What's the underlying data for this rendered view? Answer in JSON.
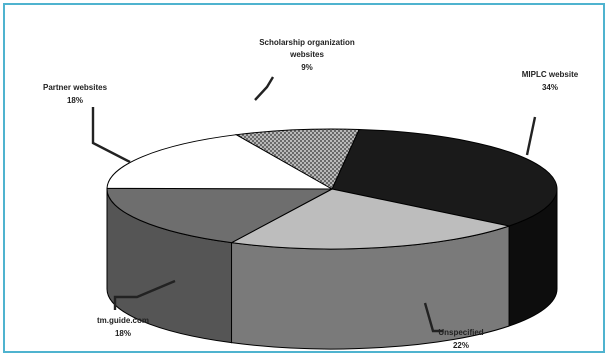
{
  "chart_data": {
    "type": "pie",
    "style": "3d-exploded-view",
    "slices": [
      {
        "name": "MIPLC website",
        "value": 34,
        "label_line1": "MIPLC website",
        "label_line2": "34%",
        "color": "#1a1a1a",
        "side_color": "#0d0d0d"
      },
      {
        "name": "Unspecified",
        "value": 22,
        "label_line1": "Unspecified",
        "label_line2": "22%",
        "color": "#bdbdbd",
        "side_color": "#7a7a7a"
      },
      {
        "name": "tm.guide.com",
        "value": 18,
        "label_line1": "tm.guide.com",
        "label_line2": "18%",
        "color": "#6e6e6e",
        "side_color": "#555555"
      },
      {
        "name": "Partner websites",
        "value": 18,
        "label_line1": "Partner websites",
        "label_line2": "18%",
        "color": "#ffffff",
        "side_color": "#e6e6e6"
      },
      {
        "name": "Scholarship organization websites",
        "value": 9,
        "label_line1": "Scholarship organization",
        "label_line2": "websites",
        "label_line3": "9%",
        "color": "#8a8a8a",
        "side_color": "#6a6a6a",
        "pattern": "crosshatch"
      }
    ]
  }
}
